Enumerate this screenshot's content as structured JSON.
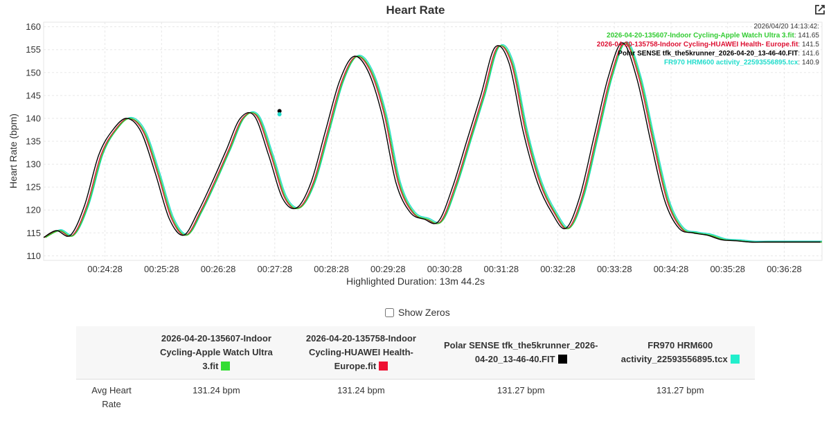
{
  "chart_data": {
    "type": "line",
    "title": "Heart Rate",
    "ylabel": "Heart Rate (bpm)",
    "ylim": [
      109,
      161
    ],
    "yticks": [
      110,
      115,
      120,
      125,
      130,
      135,
      140,
      145,
      150,
      155,
      160
    ],
    "xlim_seconds": [
      1403,
      2228
    ],
    "xticks": [
      {
        "t": 1468,
        "label": "00:24:28"
      },
      {
        "t": 1528,
        "label": "00:25:28"
      },
      {
        "t": 1588,
        "label": "00:26:28"
      },
      {
        "t": 1648,
        "label": "00:27:28"
      },
      {
        "t": 1708,
        "label": "00:28:28"
      },
      {
        "t": 1768,
        "label": "00:29:28"
      },
      {
        "t": 1828,
        "label": "00:30:28"
      },
      {
        "t": 1888,
        "label": "00:31:28"
      },
      {
        "t": 1948,
        "label": "00:32:28"
      },
      {
        "t": 2008,
        "label": "00:33:28"
      },
      {
        "t": 2068,
        "label": "00:34:28"
      },
      {
        "t": 2128,
        "label": "00:35:28"
      },
      {
        "t": 2188,
        "label": "00:36:28"
      }
    ],
    "base_curve": [
      [
        1403,
        114
      ],
      [
        1418,
        115.5
      ],
      [
        1433,
        114.5
      ],
      [
        1448,
        121
      ],
      [
        1463,
        132
      ],
      [
        1478,
        137.5
      ],
      [
        1493,
        140
      ],
      [
        1508,
        137
      ],
      [
        1523,
        128
      ],
      [
        1538,
        118
      ],
      [
        1553,
        114.5
      ],
      [
        1568,
        119.5
      ],
      [
        1583,
        126
      ],
      [
        1598,
        133
      ],
      [
        1613,
        140
      ],
      [
        1628,
        140.5
      ],
      [
        1643,
        132
      ],
      [
        1658,
        122.5
      ],
      [
        1673,
        120.5
      ],
      [
        1688,
        126
      ],
      [
        1703,
        137
      ],
      [
        1718,
        148
      ],
      [
        1733,
        153.5
      ],
      [
        1748,
        150.5
      ],
      [
        1763,
        141
      ],
      [
        1778,
        126
      ],
      [
        1793,
        119.5
      ],
      [
        1808,
        118
      ],
      [
        1823,
        117.5
      ],
      [
        1838,
        125
      ],
      [
        1853,
        135
      ],
      [
        1868,
        145
      ],
      [
        1883,
        155.5
      ],
      [
        1898,
        152
      ],
      [
        1913,
        137
      ],
      [
        1928,
        126
      ],
      [
        1943,
        119.5
      ],
      [
        1958,
        116
      ],
      [
        1973,
        123
      ],
      [
        1988,
        136
      ],
      [
        2003,
        149
      ],
      [
        2018,
        156.5
      ],
      [
        2033,
        149
      ],
      [
        2048,
        135
      ],
      [
        2063,
        122
      ],
      [
        2078,
        116
      ],
      [
        2093,
        115
      ],
      [
        2108,
        114.5
      ],
      [
        2123,
        113.5
      ],
      [
        2138,
        113.3
      ],
      [
        2153,
        113
      ],
      [
        2168,
        113
      ],
      [
        2183,
        113
      ],
      [
        2198,
        113
      ],
      [
        2213,
        113
      ],
      [
        2228,
        113
      ]
    ],
    "series": [
      {
        "name": "2026-04-20-135607-Indoor Cycling-Apple Watch Ultra 3.fit",
        "color": "#33cc33",
        "offset_s": 2.0,
        "offset_bpm": 0.0,
        "tooltip_value": "141.65"
      },
      {
        "name": "2026-04-20-135758-Indoor Cycling-HUAWEI Health- Europe.fit",
        "color": "#dd1133",
        "offset_s": 0.8,
        "offset_bpm": 0.0,
        "tooltip_value": "141.5"
      },
      {
        "name": "Polar SENSE tfk_the5krunner_2026-04-20_13-46-40.FIT",
        "color": "#000000",
        "offset_s": -1.6,
        "offset_bpm": 0.0,
        "tooltip_value": "141.6"
      },
      {
        "name": "FR970 HRM600 activity_22593556895.tcx",
        "color": "#22ddcc",
        "offset_s": 3.0,
        "offset_bpm": 0.2,
        "tooltip_value": "140.9"
      }
    ],
    "tooltip": {
      "timestamp": "2026/04/20 14:13:42:"
    },
    "hover_markers": [
      {
        "t": 1653,
        "v": 141.6,
        "color": "#000000"
      },
      {
        "t": 1653,
        "v": 140.9,
        "color": "#22ddcc"
      }
    ],
    "xlabel": "Highlighted Duration: 13m 44.2s",
    "grid": true
  },
  "controls": {
    "show_zeros_label": "Show Zeros"
  },
  "table": {
    "headers": [
      {
        "label": "2026-04-20-135607-Indoor Cycling-Apple Watch Ultra 3.fit",
        "color": "#33dd33"
      },
      {
        "label": "2026-04-20-135758-Indoor Cycling-HUAWEI Health- Europe.fit",
        "color": "#ee1133"
      },
      {
        "label": "Polar SENSE tfk_the5krunner_2026-04-20_13-46-40.FIT",
        "color": "#000000"
      },
      {
        "label": "FR970 HRM600 activity_22593556895.tcx",
        "color": "#22eecc"
      }
    ],
    "row_label": "Avg Heart Rate",
    "values": [
      "131.24 bpm",
      "131.24 bpm",
      "131.27 bpm",
      "131.27 bpm"
    ]
  }
}
